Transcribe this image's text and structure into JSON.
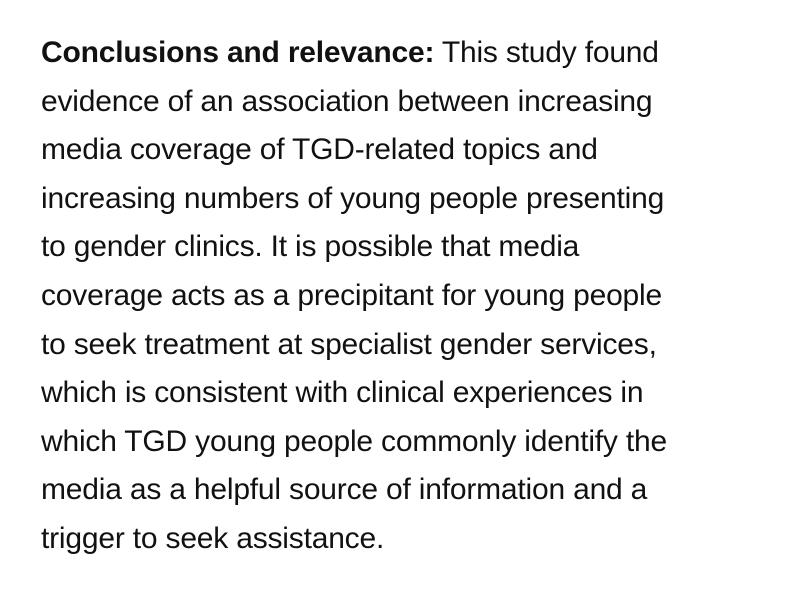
{
  "passage": {
    "heading": "Conclusions and relevance:",
    "lines": [
      " This study found",
      "evidence of an association between increasing",
      "media coverage of TGD-related topics and",
      "increasing numbers of young people presenting",
      "to gender clinics. It is possible that media",
      "coverage acts as a precipitant for young people",
      "to seek treatment at specialist gender services,",
      "which is consistent with clinical experiences in",
      "which TGD young people commonly identify the",
      "media as a helpful source of information and a",
      "trigger to seek assistance."
    ]
  }
}
